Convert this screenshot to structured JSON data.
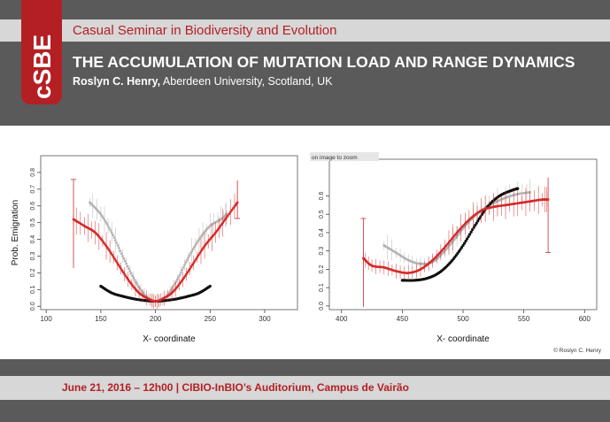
{
  "header": {
    "logo_text": "cSBE",
    "seminar": "Casual Seminar in Biodiversity and Evolution",
    "title": "THE ACCUMULATION OF MUTATION LOAD AND RANGE DYNAMICS",
    "author_name": "Roslyn C. Henry,",
    "author_affil": "Aberdeen University, Scotland, UK"
  },
  "figure": {
    "credit": "© Roslyn C. Henry",
    "colors": {
      "red": "#d42a2a",
      "grey": "#b3b3b3",
      "black": "#111111"
    }
  },
  "chart_data": [
    {
      "type": "scatter",
      "ylabel": "Prob. Emigration",
      "xlabel": "X- coordinate",
      "xlim": [
        95,
        330
      ],
      "ylim": [
        -0.02,
        0.9
      ],
      "x_ticks": [
        "100",
        "150",
        "200",
        "250",
        "300"
      ],
      "y_ticks": [
        "0.0",
        "0.1",
        "0.2",
        "0.3",
        "0.4",
        "0.5",
        "0.6",
        "0.7",
        "0.8"
      ],
      "series": [
        {
          "color": "red",
          "x": [
            125,
            135,
            145,
            155,
            165,
            175,
            185,
            195,
            200,
            205,
            215,
            225,
            235,
            245,
            255,
            265,
            275
          ],
          "y": [
            0.52,
            0.48,
            0.44,
            0.36,
            0.26,
            0.16,
            0.08,
            0.04,
            0.03,
            0.04,
            0.08,
            0.16,
            0.26,
            0.36,
            0.44,
            0.53,
            0.62
          ]
        },
        {
          "color": "grey",
          "x": [
            140,
            150,
            160,
            170,
            180,
            190,
            200,
            210,
            220,
            230,
            240,
            250,
            260,
            265
          ],
          "y": [
            0.62,
            0.55,
            0.44,
            0.3,
            0.17,
            0.07,
            0.03,
            0.06,
            0.16,
            0.29,
            0.4,
            0.48,
            0.52,
            0.55
          ]
        },
        {
          "color": "black",
          "x": [
            150,
            160,
            170,
            180,
            190,
            200,
            210,
            220,
            230,
            240,
            250
          ],
          "y": [
            0.12,
            0.08,
            0.06,
            0.045,
            0.035,
            0.03,
            0.035,
            0.045,
            0.06,
            0.08,
            0.12
          ]
        }
      ]
    },
    {
      "type": "scatter",
      "ylabel": "",
      "xlabel": "X- coordinate",
      "overlay_text": "on image to zoom",
      "xlim": [
        390,
        610
      ],
      "ylim": [
        -0.02,
        0.8
      ],
      "x_ticks": [
        "400",
        "450",
        "500",
        "550",
        "600"
      ],
      "y_ticks": [
        "0.0",
        "0.1",
        "0.2",
        "0.3",
        "0.4",
        "0.5",
        "0.6"
      ],
      "series": [
        {
          "color": "red",
          "x": [
            418,
            425,
            435,
            445,
            455,
            465,
            475,
            485,
            495,
            505,
            515,
            525,
            535,
            545,
            555,
            565,
            570
          ],
          "y": [
            0.26,
            0.22,
            0.21,
            0.19,
            0.18,
            0.2,
            0.25,
            0.32,
            0.4,
            0.47,
            0.52,
            0.54,
            0.55,
            0.56,
            0.57,
            0.58,
            0.58
          ]
        },
        {
          "color": "grey",
          "x": [
            435,
            445,
            455,
            465,
            475,
            485,
            495,
            505,
            515,
            525,
            535,
            545,
            555
          ],
          "y": [
            0.33,
            0.29,
            0.25,
            0.23,
            0.24,
            0.3,
            0.38,
            0.46,
            0.52,
            0.56,
            0.59,
            0.61,
            0.62
          ]
        },
        {
          "color": "black",
          "x": [
            450,
            460,
            470,
            480,
            490,
            500,
            510,
            520,
            530,
            540,
            545
          ],
          "y": [
            0.14,
            0.14,
            0.15,
            0.18,
            0.24,
            0.33,
            0.44,
            0.54,
            0.6,
            0.63,
            0.64
          ]
        }
      ]
    }
  ],
  "footer": {
    "date_line": "June 21, 2016 – 12h00 | CIBIO-InBIO’s Auditorium,  Campus de Vairão"
  }
}
